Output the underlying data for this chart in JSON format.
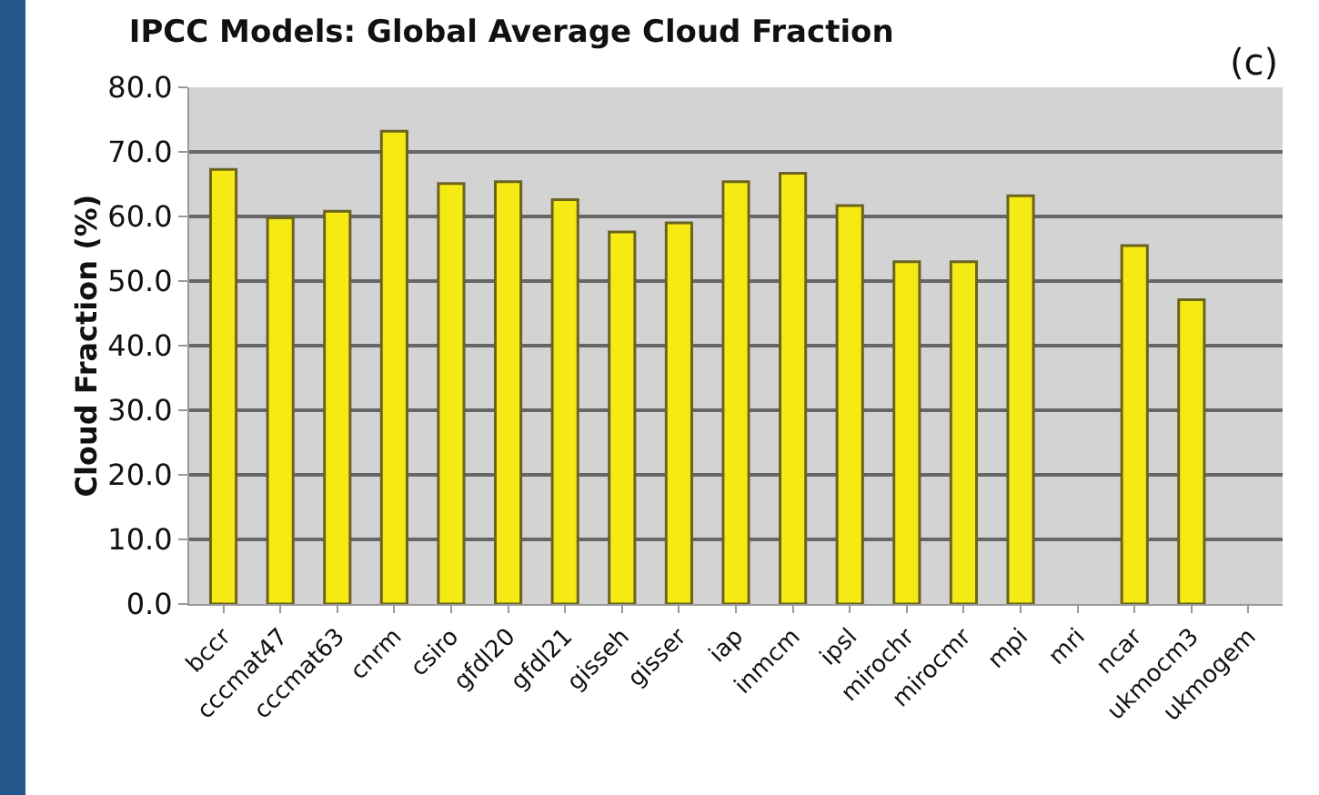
{
  "chart_data": {
    "type": "bar",
    "title": "IPCC Models: Global Average Cloud Fraction",
    "ylabel": "Cloud Fraction (%)",
    "annotations": [
      "(c)"
    ],
    "categories": [
      "bccr",
      "cccmat47",
      "cccmat63",
      "cnrm",
      "csiro",
      "gfdl20",
      "gfdl21",
      "gisseh",
      "gisser",
      "iap",
      "inmcm",
      "ipsl",
      "mirochr",
      "mirocmr",
      "mpi",
      "mri",
      "ncar",
      "ukmocm3",
      "ukmogem"
    ],
    "values": [
      67.3,
      59.8,
      60.8,
      73.2,
      65.1,
      65.4,
      62.6,
      57.6,
      59.0,
      65.4,
      66.7,
      61.7,
      53.0,
      53.0,
      63.2,
      null,
      55.5,
      47.1,
      null
    ],
    "color": "#f5ea14",
    "ylim": [
      0,
      80
    ],
    "yticks": [
      {
        "value": 0,
        "label": "0.0"
      },
      {
        "value": 10,
        "label": "10.0"
      },
      {
        "value": 20,
        "label": "20.0"
      },
      {
        "value": 30,
        "label": "30.0"
      },
      {
        "value": 40,
        "label": "40.0"
      },
      {
        "value": 50,
        "label": "50.0"
      },
      {
        "value": 60,
        "label": "60.0"
      },
      {
        "value": 70,
        "label": "70.0"
      },
      {
        "value": 80,
        "label": "80.0"
      }
    ],
    "grid": "y",
    "legend": false
  }
}
